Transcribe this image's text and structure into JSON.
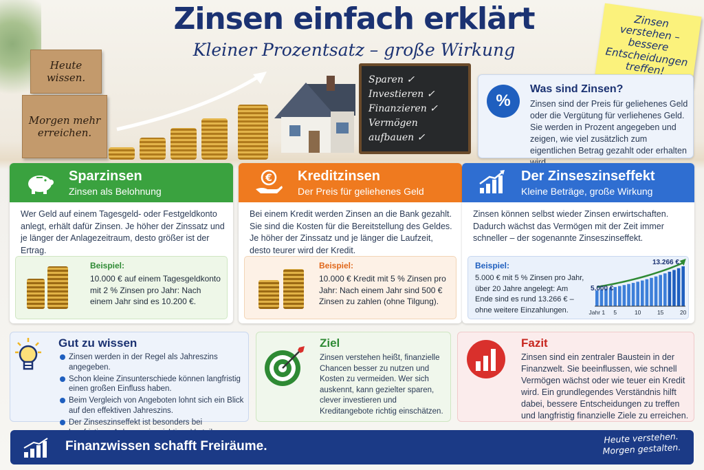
{
  "header": {
    "title": "Zinsen einfach erklärt",
    "subtitle": "Kleiner Prozentsatz – große Wirkung"
  },
  "sticky_note": "Zinsen verstehen – bessere Entscheidungen treffen!",
  "wood_blocks": [
    "Heute wissen.",
    "Morgen mehr erreichen."
  ],
  "chalkboard": [
    "Sparen ✓",
    "Investieren ✓",
    "Finanzieren ✓",
    "Vermögen aufbauen ✓"
  ],
  "what_is": {
    "icon": "%",
    "title": "Was sind Zinsen?",
    "text": "Zinsen sind der Preis für geliehenes Geld oder die Vergütung für verliehenes Geld. Sie werden in Prozent angegeben und zeigen, wie viel zusätzlich zum eigentlichen Betrag gezahlt oder erhalten wird."
  },
  "columns": [
    {
      "title": "Sparzinsen",
      "subtitle": "Zinsen als Belohnung",
      "text": "Wer Geld auf einem Tagesgeld- oder Festgeldkonto anlegt, erhält dafür Zinsen. Je höher der Zinssatz und je länger der Anlagezeitraum, desto größer ist der Ertrag.",
      "example_label": "Beispiel:",
      "example_text": "10.000 € auf einem Tagesgeldkonto mit 2 % Zinsen pro Jahr: Nach einem Jahr sind es 10.200 €.",
      "color": "#3aa23f"
    },
    {
      "title": "Kreditzinsen",
      "subtitle": "Der Preis für geliehenes Geld",
      "text": "Bei einem Kredit werden Zinsen an die Bank gezahlt. Sie sind die Kosten für die Bereitstellung des Geldes. Je höher der Zinssatz und je länger die Laufzeit, desto teurer wird der Kredit.",
      "example_label": "Beispiel:",
      "example_text": "10.000 € Kredit mit 5 % Zinsen pro Jahr: Nach einem Jahr sind 500 € Zinsen zu zahlen (ohne Tilgung).",
      "color": "#ef7a1f"
    },
    {
      "title": "Der Zinseszinseffekt",
      "subtitle": "Kleine Beträge, große Wirkung",
      "text": "Zinsen können selbst wieder Zinsen erwirtschaften. Dadurch wächst das Vermögen mit der Zeit immer schneller – der sogenannte Zinseszinseffekt.",
      "example_label": "Beispiel:",
      "example_text": "5.000 € mit 5 % Zinsen pro Jahr, über 20 Jahre angelegt: Am Ende sind es rund 13.266 € – ohne weitere Einzahlungen.",
      "color": "#2f6ed1"
    }
  ],
  "chart_data": {
    "type": "bar",
    "start_label": "5.000 €",
    "end_label": "13.266 €",
    "x_ticks": [
      "Jahr 1",
      "5",
      "10",
      "15",
      "20"
    ],
    "values": [
      5250,
      5513,
      5788,
      6078,
      6381,
      6700,
      7036,
      7387,
      7757,
      8144,
      8552,
      8979,
      9428,
      9900,
      10395,
      10914,
      11460,
      12033,
      12635,
      13266
    ],
    "ylim": [
      0,
      13266
    ]
  },
  "good_to_know": {
    "title": "Gut zu wissen",
    "items": [
      "Zinsen werden in der Regel als Jahreszins angegeben.",
      "Schon kleine Zinsunterschiede können langfristig einen großen Einfluss haben.",
      "Beim Vergleich von Angeboten lohnt sich ein Blick auf den effektiven Jahreszins.",
      "Der Zinseszinseffekt ist besonders bei langfristigen Anlagen ein wichtiger Vorteil."
    ]
  },
  "goal": {
    "title": "Ziel",
    "text": "Zinsen verstehen heißt, finanzielle Chancen besser zu nutzen und Kosten zu vermeiden. Wer sich auskennt, kann gezielter sparen, clever investieren und Kreditangebote richtig einschätzen."
  },
  "conclusion": {
    "title": "Fazit",
    "text": "Zinsen sind ein zentraler Baustein in der Finanzwelt. Sie beeinflussen, wie schnell Vermögen wächst oder wie teuer ein Kredit wird. Ein grundlegendes Verständnis hilft dabei, bessere Entscheidungen zu treffen und langfristig finanzielle Ziele zu erreichen."
  },
  "footer": {
    "text": "Finanzwissen schafft Freiräume.",
    "right": "Heute verstehen. Morgen gestalten."
  }
}
